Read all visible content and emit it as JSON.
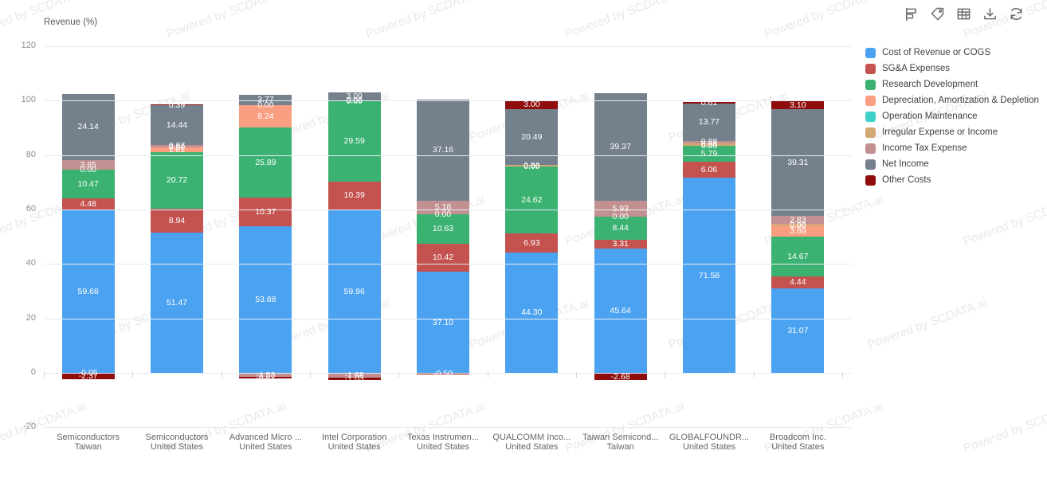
{
  "watermark": {
    "text": "Powered by SCDATA.ai"
  },
  "header": {
    "toolbar_icons": [
      "flag-report-icon",
      "tag-icon",
      "table-icon",
      "download-icon",
      "refresh-icon"
    ]
  },
  "chart_data": {
    "type": "bar",
    "stacked": true,
    "title": "Revenue (%)",
    "xlabel": "",
    "ylabel": "Revenue (%)",
    "ylim": [
      -20,
      120
    ],
    "y_ticks": [
      120,
      100,
      80,
      60,
      40,
      20,
      0,
      -20
    ],
    "grid": true,
    "legend_position": "right",
    "series": [
      {
        "name": "Cost of Revenue or COGS",
        "color": "#4aa2f0"
      },
      {
        "name": "SG&A Expenses",
        "color": "#c4524f"
      },
      {
        "name": "Research Development",
        "color": "#3bb271"
      },
      {
        "name": "Depreciation, Amortization & Depletion",
        "color": "#f99e81"
      },
      {
        "name": "Operation Maintenance",
        "color": "#3ed0c9"
      },
      {
        "name": "Irregular Expense or Income",
        "color": "#d2a874"
      },
      {
        "name": "Income Tax Expense",
        "color": "#c29090"
      },
      {
        "name": "Net Income",
        "color": "#75808d"
      },
      {
        "name": "Other Costs",
        "color": "#8f0e0d"
      }
    ],
    "categories": [
      [
        "Semiconductors",
        "Taiwan"
      ],
      [
        "Semiconductors",
        "United States"
      ],
      [
        "Advanced Micro ...",
        "United States"
      ],
      [
        "Intel Corporation",
        "United States"
      ],
      [
        "Texas Instrumen...",
        "United States"
      ],
      [
        "QUALCOMM Inco...",
        "United States"
      ],
      [
        "Taiwan Semicond...",
        "Taiwan"
      ],
      [
        "GLOBALFOUNDR...",
        "United States"
      ],
      [
        "Broadcom Inc.",
        "United States"
      ]
    ],
    "bars": [
      {
        "segments": [
          {
            "series": "Cost of Revenue or COGS",
            "value": 59.68
          },
          {
            "series": "SG&A Expenses",
            "value": 4.48
          },
          {
            "series": "Research Development",
            "value": 10.47
          },
          {
            "series": "Depreciation, Amortization & Depletion",
            "value": 0.0
          },
          {
            "series": "Income Tax Expense",
            "value": 3.65
          },
          {
            "series": "Net Income",
            "value": 24.14
          },
          {
            "series": "Irregular Expense or Income",
            "value": -0.05
          },
          {
            "series": "Other Costs",
            "value": -2.37
          }
        ]
      },
      {
        "segments": [
          {
            "series": "Cost of Revenue or COGS",
            "value": 51.47
          },
          {
            "series": "SG&A Expenses",
            "value": 8.94
          },
          {
            "series": "Research Development",
            "value": 20.72
          },
          {
            "series": "Depreciation, Amortization & Depletion",
            "value": 1.81
          },
          {
            "series": "Irregular Expense or Income",
            "value": 0.0
          },
          {
            "series": "Income Tax Expense",
            "value": 0.87
          },
          {
            "series": "Net Income",
            "value": 14.44
          },
          {
            "series": "Other Costs",
            "value": 0.39
          }
        ]
      },
      {
        "segments": [
          {
            "series": "Cost of Revenue or COGS",
            "value": 53.88
          },
          {
            "series": "SG&A Expenses",
            "value": 10.37
          },
          {
            "series": "Research Development",
            "value": 25.89
          },
          {
            "series": "Depreciation, Amortization & Depletion",
            "value": 8.24
          },
          {
            "series": "Operation Maintenance",
            "value": 0.0
          },
          {
            "series": "Net Income",
            "value": 3.77
          },
          {
            "series": "Income Tax Expense",
            "value": -1.53
          },
          {
            "series": "Other Costs",
            "value": -0.62
          }
        ]
      },
      {
        "segments": [
          {
            "series": "Cost of Revenue or COGS",
            "value": 59.96
          },
          {
            "series": "SG&A Expenses",
            "value": 10.39
          },
          {
            "series": "Research Development",
            "value": 29.59
          },
          {
            "series": "Depreciation, Amortization & Depletion",
            "value": 0.0
          },
          {
            "series": "Irregular Expense or Income",
            "value": 0.06
          },
          {
            "series": "Net Income",
            "value": 3.09
          },
          {
            "series": "Income Tax Expense",
            "value": -1.68
          },
          {
            "series": "Other Costs",
            "value": -1.03
          }
        ]
      },
      {
        "segments": [
          {
            "series": "Cost of Revenue or COGS",
            "value": 37.1
          },
          {
            "series": "SG&A Expenses",
            "value": 10.42
          },
          {
            "series": "Research Development",
            "value": 10.63
          },
          {
            "series": "Irregular Expense or Income",
            "value": 0.0
          },
          {
            "series": "Income Tax Expense",
            "value": 5.18
          },
          {
            "series": "Net Income",
            "value": 37.16
          },
          {
            "series": "Other Costs",
            "value": -0.5
          }
        ]
      },
      {
        "segments": [
          {
            "series": "Cost of Revenue or COGS",
            "value": 44.3
          },
          {
            "series": "SG&A Expenses",
            "value": 6.93
          },
          {
            "series": "Research Development",
            "value": 24.62
          },
          {
            "series": "Depreciation, Amortization & Depletion",
            "value": 0.0
          },
          {
            "series": "Irregular Expense or Income",
            "value": 0.66
          },
          {
            "series": "Net Income",
            "value": 20.49
          },
          {
            "series": "Other Costs",
            "value": 3.0
          }
        ]
      },
      {
        "segments": [
          {
            "series": "Cost of Revenue or COGS",
            "value": 45.64
          },
          {
            "series": "SG&A Expenses",
            "value": 3.31
          },
          {
            "series": "Research Development",
            "value": 8.44
          },
          {
            "series": "Operation Maintenance",
            "value": 0.0
          },
          {
            "series": "Income Tax Expense",
            "value": 5.93
          },
          {
            "series": "Net Income",
            "value": 39.37
          },
          {
            "series": "Other Costs",
            "value": -2.68
          }
        ]
      },
      {
        "segments": [
          {
            "series": "Cost of Revenue or COGS",
            "value": 71.58
          },
          {
            "series": "SG&A Expenses",
            "value": 6.06
          },
          {
            "series": "Research Development",
            "value": 5.79
          },
          {
            "series": "Depreciation, Amortization & Depletion",
            "value": 0.0
          },
          {
            "series": "Irregular Expense or Income",
            "value": 0.94
          },
          {
            "series": "Income Tax Expense",
            "value": 0.88
          },
          {
            "series": "Net Income",
            "value": 13.77
          },
          {
            "series": "Other Costs",
            "value": 0.61
          }
        ]
      },
      {
        "segments": [
          {
            "series": "Cost of Revenue or COGS",
            "value": 31.07
          },
          {
            "series": "SG&A Expenses",
            "value": 4.44
          },
          {
            "series": "Research Development",
            "value": 14.67
          },
          {
            "series": "Depreciation, Amortization & Depletion",
            "value": 3.89
          },
          {
            "series": "Operation Maintenance",
            "value": 0.0
          },
          {
            "series": "Irregular Expense or Income",
            "value": 0.66
          },
          {
            "series": "Income Tax Expense",
            "value": 2.83
          },
          {
            "series": "Net Income",
            "value": 39.31
          },
          {
            "series": "Other Costs",
            "value": 3.1
          }
        ]
      }
    ]
  }
}
